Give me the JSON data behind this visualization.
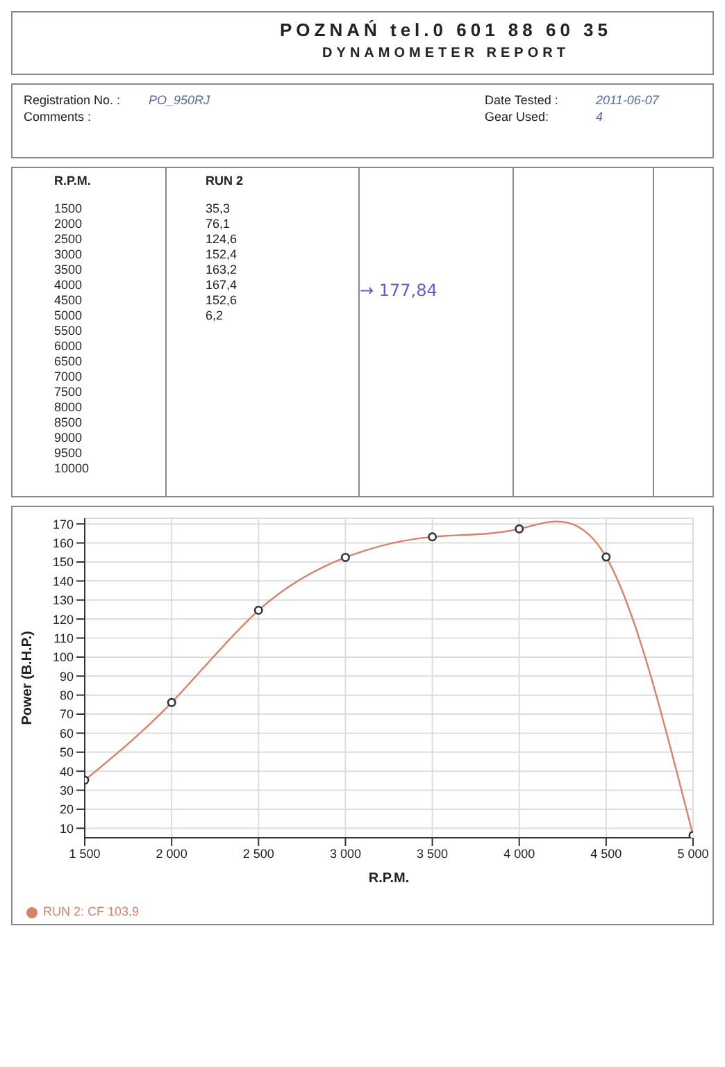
{
  "chart_data": {
    "type": "line",
    "title": "DYNAMOMETER REPORT",
    "subtitle": "POZNAŃ tel.0 601 88 60 35",
    "xlabel": "R.P.M.",
    "ylabel": "Power (B.H.P.)",
    "annotations": [
      "Registration No. :",
      "PO_950RJ",
      "Comments :",
      "Date Tested :",
      "2011-06-07",
      "Gear Used:",
      "4",
      "R.P.M.",
      "RUN 2",
      "→ 177,84",
      "1500",
      "2000",
      "2500",
      "3000",
      "3500",
      "4000",
      "4500",
      "5000",
      "5500",
      "6000",
      "6500",
      "7000",
      "7500",
      "8000",
      "8500",
      "9000",
      "9500",
      "10000",
      "35,3",
      "76,1",
      "124,6",
      "152,4",
      "163,2",
      "167,4",
      "152,6",
      "6,2"
    ],
    "x": [
      1500,
      2000,
      2500,
      3000,
      3500,
      4000,
      4500,
      5000
    ],
    "series": [
      {
        "name": "RUN 2: CF 103,9",
        "color": "#d9826a",
        "values": [
          35.3,
          76.1,
          124.6,
          152.4,
          163.2,
          167.4,
          152.6,
          6.2
        ]
      }
    ],
    "xlim": [
      1500,
      5000
    ],
    "xticks": [
      {
        "value": 1500,
        "label": "1 500"
      },
      {
        "value": 2000,
        "label": "2 000"
      },
      {
        "value": 2500,
        "label": "2 500"
      },
      {
        "value": 3000,
        "label": "3 000"
      },
      {
        "value": 3500,
        "label": "3 500"
      },
      {
        "value": 4000,
        "label": "4 000"
      },
      {
        "value": 4500,
        "label": "4 500"
      },
      {
        "value": 5000,
        "label": "5 000"
      }
    ],
    "ylim": [
      5,
      173
    ],
    "yticks": [
      10,
      20,
      30,
      40,
      50,
      60,
      70,
      80,
      90,
      100,
      110,
      120,
      130,
      140,
      150,
      160,
      170
    ],
    "grid": true,
    "legend": "bottom left",
    "marker": "circle",
    "line_style": "solid"
  }
}
